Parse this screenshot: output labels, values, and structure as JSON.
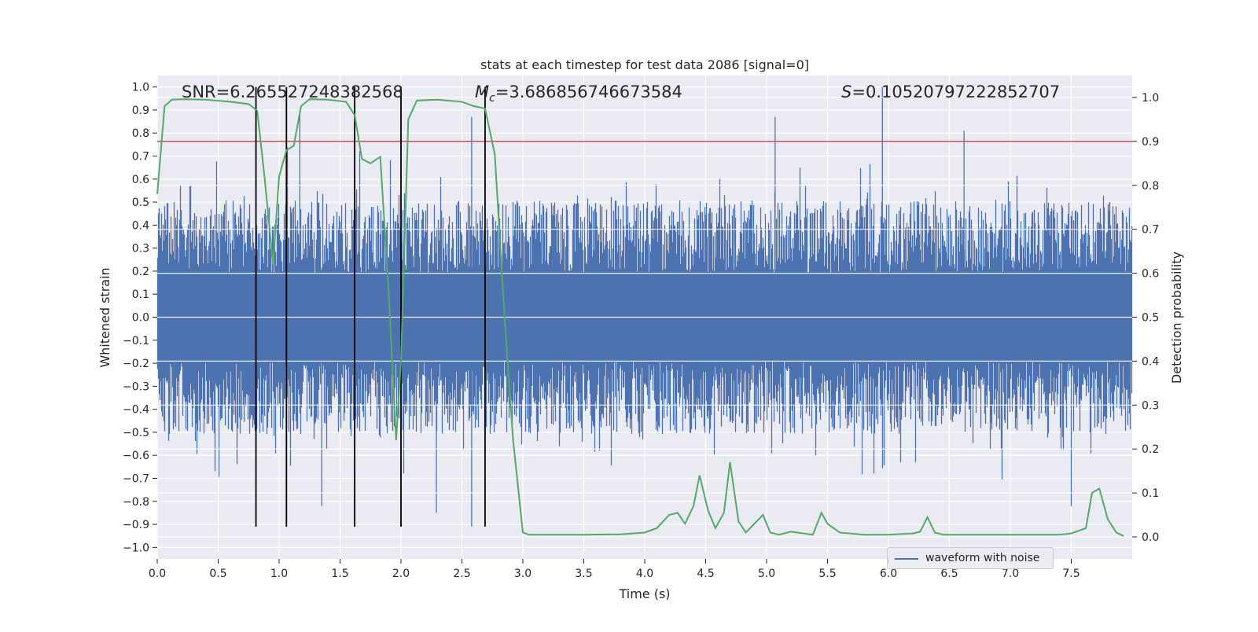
{
  "chart_data": {
    "type": "line",
    "title": "stats at each timestep for test data 2086 [signal=0]",
    "xlabel": "Time (s)",
    "ylabel_left": "Whitened strain",
    "ylabel_right": "Detection probability",
    "xlim": [
      0.0,
      8.0
    ],
    "ylim_left": [
      -1.05,
      1.05
    ],
    "ylim_right": [
      -0.05,
      1.05
    ],
    "x_ticks": [
      "0.0",
      "0.5",
      "1.0",
      "1.5",
      "2.0",
      "2.5",
      "3.0",
      "3.5",
      "4.0",
      "4.5",
      "5.0",
      "5.5",
      "6.0",
      "6.5",
      "7.0",
      "7.5"
    ],
    "y_ticks_left": [
      "1.0",
      "0.9",
      "0.8",
      "0.7",
      "0.6",
      "0.5",
      "0.4",
      "0.3",
      "0.2",
      "0.1",
      "0.0",
      "−0.1",
      "−0.2",
      "−0.3",
      "−0.4",
      "−0.5",
      "−0.6",
      "−0.7",
      "−0.8",
      "−0.9",
      "−1.0"
    ],
    "y_ticks_right": [
      "1.0",
      "0.9",
      "0.8",
      "0.7",
      "0.6",
      "0.5",
      "0.4",
      "0.3",
      "0.2",
      "0.1",
      "0.0"
    ],
    "grid": true,
    "legend_position": "lower-right",
    "annotations": {
      "snr": "SNR=6.265527248382568",
      "mc_symbol": "M",
      "mc_sub": "c",
      "mc_value": "=3.686856746673584",
      "s_symbol": "S",
      "s_value": "=0.10520797222852707"
    },
    "threshold_line": {
      "y_right": 0.9,
      "color": "#c44e52"
    },
    "vertical_markers": {
      "x": [
        0.81,
        1.06,
        1.62,
        2.0,
        2.69
      ],
      "y_range_left": [
        -0.91,
        1.0
      ],
      "color": "#000000"
    },
    "series": [
      {
        "name": "waveform with noise",
        "axis": "left",
        "color": "#4c72b0",
        "kind": "noise",
        "typical_abs_amplitude": 0.35,
        "peak_max": 1.0,
        "peak_min": -0.91,
        "peaks": [
          {
            "x": 5.07,
            "y": 0.87
          },
          {
            "x": 5.95,
            "y": 1.0
          },
          {
            "x": 6.62,
            "y": 0.81
          },
          {
            "x": 2.58,
            "y": 0.87
          },
          {
            "x": 1.17,
            "y": 0.88
          },
          {
            "x": 2.29,
            "y": -0.85
          },
          {
            "x": 2.58,
            "y": -0.91
          },
          {
            "x": 7.5,
            "y": -0.82
          },
          {
            "x": 1.35,
            "y": -0.82
          }
        ]
      },
      {
        "name": "",
        "axis": "right",
        "color": "#55a868",
        "kind": "line",
        "x": [
          0.0,
          0.06,
          0.12,
          0.2,
          0.4,
          0.6,
          0.75,
          0.82,
          0.88,
          0.95,
          1.0,
          1.06,
          1.12,
          1.18,
          1.25,
          1.4,
          1.55,
          1.62,
          1.68,
          1.75,
          1.83,
          1.9,
          1.96,
          2.0,
          2.06,
          2.13,
          2.3,
          2.5,
          2.6,
          2.69,
          2.77,
          2.85,
          2.92,
          3.0,
          3.05,
          3.2,
          3.5,
          3.8,
          4.0,
          4.1,
          4.2,
          4.27,
          4.33,
          4.4,
          4.45,
          4.52,
          4.58,
          4.65,
          4.7,
          4.77,
          4.83,
          4.9,
          4.97,
          5.03,
          5.1,
          5.2,
          5.3,
          5.38,
          5.45,
          5.5,
          5.6,
          5.8,
          6.0,
          6.2,
          6.26,
          6.32,
          6.38,
          6.45,
          6.6,
          7.0,
          7.4,
          7.5,
          7.55,
          7.62,
          7.67,
          7.73,
          7.8,
          7.87,
          7.93
        ],
        "values": [
          0.78,
          0.98,
          0.995,
          0.996,
          0.995,
          0.99,
          0.985,
          0.97,
          0.82,
          0.62,
          0.82,
          0.88,
          0.89,
          0.98,
          0.996,
          0.995,
          0.99,
          0.96,
          0.86,
          0.85,
          0.865,
          0.55,
          0.22,
          0.4,
          0.95,
          0.993,
          0.995,
          0.99,
          0.98,
          0.975,
          0.87,
          0.5,
          0.22,
          0.01,
          0.005,
          0.005,
          0.005,
          0.006,
          0.01,
          0.02,
          0.05,
          0.055,
          0.03,
          0.07,
          0.14,
          0.06,
          0.02,
          0.055,
          0.17,
          0.035,
          0.01,
          0.03,
          0.05,
          0.01,
          0.005,
          0.012,
          0.008,
          0.005,
          0.055,
          0.03,
          0.01,
          0.005,
          0.005,
          0.008,
          0.012,
          0.045,
          0.01,
          0.005,
          0.005,
          0.005,
          0.005,
          0.008,
          0.013,
          0.02,
          0.1,
          0.11,
          0.04,
          0.01,
          0.002
        ]
      }
    ]
  }
}
